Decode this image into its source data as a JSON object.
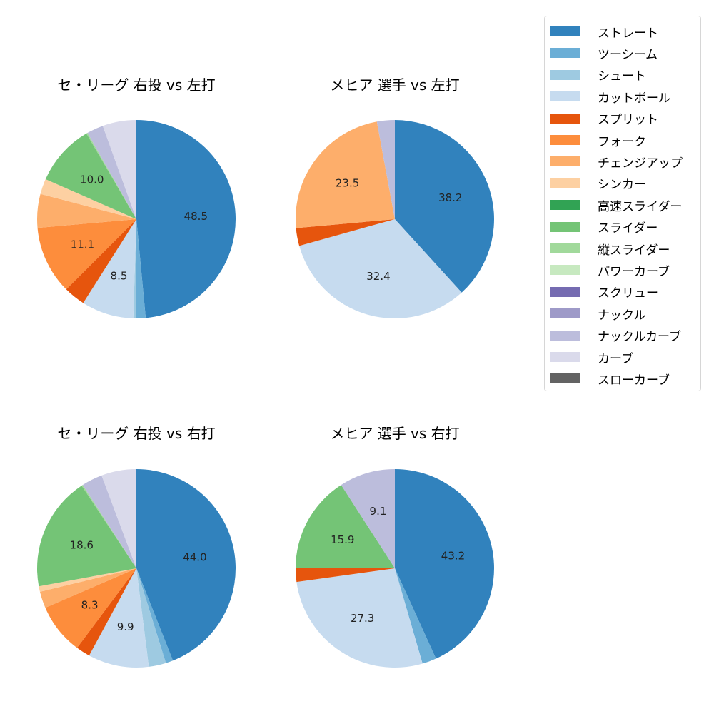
{
  "legend": {
    "items": [
      {
        "label": "ストレート",
        "color": "#3182bd"
      },
      {
        "label": "ツーシーム",
        "color": "#6baed6"
      },
      {
        "label": "シュート",
        "color": "#9ecae1"
      },
      {
        "label": "カットボール",
        "color": "#c6dbef"
      },
      {
        "label": "スプリット",
        "color": "#e6550d"
      },
      {
        "label": "フォーク",
        "color": "#fd8d3c"
      },
      {
        "label": "チェンジアップ",
        "color": "#fdae6b"
      },
      {
        "label": "シンカー",
        "color": "#fdd0a2"
      },
      {
        "label": "高速スライダー",
        "color": "#31a354"
      },
      {
        "label": "スライダー",
        "color": "#74c476"
      },
      {
        "label": "縦スライダー",
        "color": "#a1d99b"
      },
      {
        "label": "パワーカーブ",
        "color": "#c7e9c0"
      },
      {
        "label": "スクリュー",
        "color": "#756bb1"
      },
      {
        "label": "ナックル",
        "color": "#9e9ac8"
      },
      {
        "label": "ナックルカーブ",
        "color": "#bcbddc"
      },
      {
        "label": "カーブ",
        "color": "#dadaeb"
      },
      {
        "label": "スローカーブ",
        "color": "#636363"
      }
    ]
  },
  "chart_data": [
    {
      "type": "pie",
      "title": "セ・リーグ 右投 vs 左打",
      "categories": [
        "ストレート",
        "ツーシーム",
        "シュート",
        "カットボール",
        "スプリット",
        "フォーク",
        "チェンジアップ",
        "シンカー",
        "スライダー",
        "縦スライダー",
        "ナックルカーブ",
        "カーブ"
      ],
      "values": [
        48.5,
        1.5,
        0.5,
        8.5,
        3.5,
        11.1,
        5.5,
        2.5,
        10.0,
        0.2,
        2.7,
        5.5
      ],
      "labels_shown": [
        "48.5",
        "",
        "",
        "8.5",
        "",
        "11.1",
        "",
        "",
        "10.0",
        "",
        "",
        ""
      ],
      "start_angle": 90,
      "direction": "clockwise"
    },
    {
      "type": "pie",
      "title": "メヒア 選手 vs 左打",
      "categories": [
        "ストレート",
        "カットボール",
        "スプリット",
        "チェンジアップ",
        "ナックルカーブ"
      ],
      "values": [
        38.2,
        32.4,
        2.9,
        23.5,
        2.9
      ],
      "labels_shown": [
        "38.2",
        "32.4",
        "",
        "23.5",
        ""
      ],
      "start_angle": 90,
      "direction": "clockwise"
    },
    {
      "type": "pie",
      "title": "セ・リーグ 右投 vs 右打",
      "categories": [
        "ストレート",
        "ツーシーム",
        "シュート",
        "カットボール",
        "スプリット",
        "フォーク",
        "チェンジアップ",
        "シンカー",
        "スライダー",
        "縦スライダー",
        "ナックルカーブ",
        "カーブ"
      ],
      "values": [
        44.0,
        1.2,
        2.8,
        9.9,
        2.3,
        8.3,
        2.7,
        0.9,
        18.6,
        0.2,
        3.4,
        5.7
      ],
      "labels_shown": [
        "44.0",
        "",
        "",
        "9.9",
        "",
        "8.3",
        "",
        "",
        "18.6",
        "",
        "",
        ""
      ],
      "start_angle": 90,
      "direction": "clockwise"
    },
    {
      "type": "pie",
      "title": "メヒア 選手 vs 右打",
      "categories": [
        "ストレート",
        "ツーシーム",
        "カットボール",
        "スプリット",
        "スライダー",
        "ナックルカーブ"
      ],
      "values": [
        43.2,
        2.3,
        27.3,
        2.2,
        15.9,
        9.1
      ],
      "labels_shown": [
        "43.2",
        "",
        "27.3",
        "",
        "15.9",
        "9.1"
      ],
      "start_angle": 90,
      "direction": "clockwise"
    }
  ]
}
